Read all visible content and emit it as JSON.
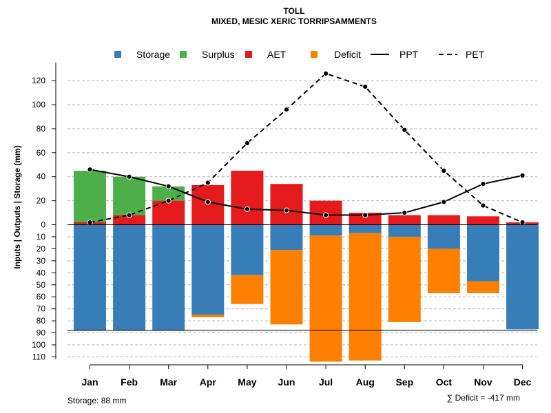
{
  "chart_data": {
    "type": "bar",
    "title": "TOLL",
    "subtitle": "MIXED, MESIC XERIC TORRIPSAMMENTS",
    "ylabel": "Inputs | Outputs | Storage    (mm)",
    "categories": [
      "Jan",
      "Feb",
      "Mar",
      "Apr",
      "May",
      "Jun",
      "Jul",
      "Aug",
      "Sep",
      "Oct",
      "Nov",
      "Dec"
    ],
    "upper_ticks": [
      "0",
      "20",
      "40",
      "60",
      "80",
      "100",
      "120"
    ],
    "lower_ticks": [
      "10",
      "20",
      "30",
      "40",
      "50",
      "60",
      "70",
      "80",
      "90",
      "100",
      "110"
    ],
    "ylim_upper": [
      0,
      130
    ],
    "ylim_lower": [
      0,
      112
    ],
    "series": [
      {
        "name": "Surplus",
        "color": "#4daf4a",
        "values": [
          43,
          32,
          12,
          0,
          0,
          0,
          0,
          0,
          0,
          0,
          0,
          0
        ]
      },
      {
        "name": "AET",
        "color": "#e41a1c",
        "values": [
          2,
          8,
          20,
          33,
          45,
          34,
          20,
          10,
          8,
          8,
          7,
          2
        ]
      },
      {
        "name": "Storage",
        "color": "#377eb8",
        "values": [
          88,
          88,
          88,
          75,
          42,
          21,
          9,
          7,
          10,
          20,
          47,
          87
        ]
      },
      {
        "name": "Deficit",
        "color": "#ff7f00",
        "values": [
          0,
          0,
          0,
          2,
          24,
          62,
          105,
          106,
          71,
          37,
          10,
          0
        ]
      },
      {
        "name": "PPT",
        "color": "#000000",
        "style": "solid",
        "values": [
          46,
          40,
          32,
          19,
          13,
          12,
          8,
          8,
          10,
          19,
          34,
          41
        ]
      },
      {
        "name": "PET",
        "color": "#000000",
        "style": "dashed",
        "values": [
          2,
          8,
          20,
          35,
          68,
          96,
          126,
          115,
          79,
          45,
          16,
          2
        ]
      }
    ],
    "legend": [
      {
        "label": "Storage",
        "kind": "box",
        "color": "#377eb8"
      },
      {
        "label": "Surplus",
        "kind": "box",
        "color": "#4daf4a"
      },
      {
        "label": "AET",
        "kind": "box",
        "color": "#e41a1c"
      },
      {
        "label": "Deficit",
        "kind": "box",
        "color": "#ff7f00"
      },
      {
        "label": "PPT",
        "kind": "line",
        "dash": false
      },
      {
        "label": "PET",
        "kind": "line",
        "dash": true
      }
    ],
    "legend_position": "top",
    "storage_capacity": 88,
    "storage_note": "Storage: 88 mm",
    "deficit_note": "∑ Deficit = -417 mm"
  }
}
